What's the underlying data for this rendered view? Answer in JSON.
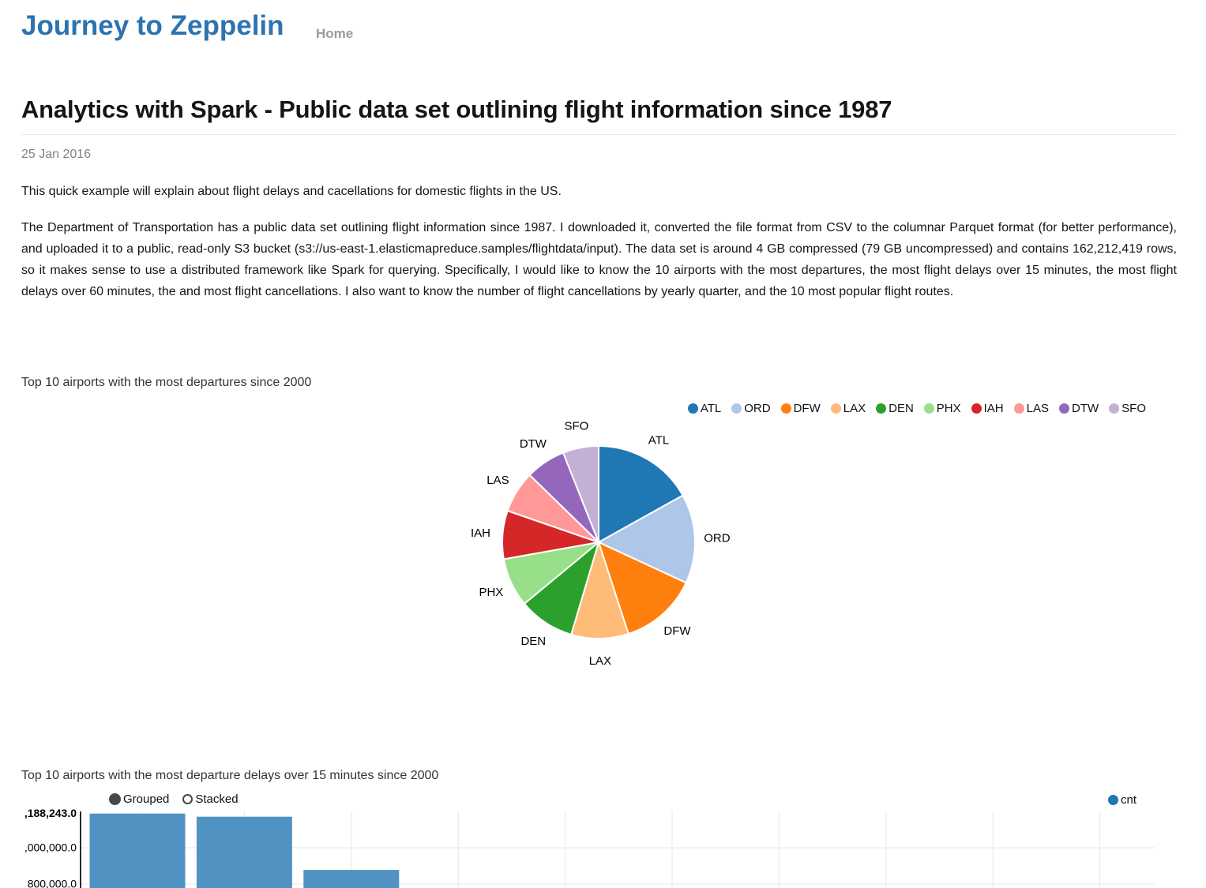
{
  "header": {
    "site_title": "Journey to Zeppelin",
    "nav": [
      {
        "label": "Home"
      }
    ]
  },
  "article": {
    "title": "Analytics with Spark - Public data set outlining flight information since 1987",
    "date": "25 Jan 2016",
    "paragraphs": [
      "This quick example will explain about flight delays and cacellations for domestic flights in the US.",
      "The Department of Transportation has a public data set outlining flight information since 1987. I downloaded it, converted the file format from CSV to the columnar Parquet format (for better performance), and uploaded it to a public, read-only S3 bucket (s3://us-east-1.elasticmapreduce.samples/flightdata/input). The data set is around 4 GB compressed (79 GB uncompressed) and contains 162,212,419 rows, so it makes sense to use a distributed framework like Spark for querying. Specifically, I would like to know the 10 airports with the most departures, the most flight delays over 15 minutes, the most flight delays over 60 minutes, the and most flight cancellations. I also want to know the number of flight cancellations by yearly quarter, and the 10 most popular flight routes."
    ]
  },
  "chart_data": [
    {
      "type": "pie",
      "title": "Top 10 airports with the most departures since 2000",
      "categories": [
        "ATL",
        "ORD",
        "DFW",
        "LAX",
        "DEN",
        "PHX",
        "IAH",
        "LAS",
        "DTW",
        "SFO"
      ],
      "values_pct": [
        16.9,
        15.0,
        13.1,
        9.6,
        9.4,
        8.2,
        8.1,
        7.0,
        6.7,
        6.0
      ],
      "colors": [
        "#1f77b4",
        "#aec7e8",
        "#ff7f0e",
        "#ffbb78",
        "#2ca02c",
        "#98df8a",
        "#d62728",
        "#ff9896",
        "#9467bd",
        "#c5b0d5"
      ],
      "legend_position": "top-right",
      "labels": "outside"
    },
    {
      "type": "bar",
      "title": "Top 10 airports with the most departure delays over 15 minutes since 2000",
      "controls": {
        "options": [
          "Grouped",
          "Stacked"
        ],
        "selected": "Grouped"
      },
      "series": [
        {
          "name": "cnt",
          "color": "#1f77b4",
          "bar_fill": "#5093c3",
          "values_visible": [
            1188243,
            1171000,
            878000
          ]
        }
      ],
      "y_axis": {
        "tick_labels_visible": [
          ",188,243.0",
          ",000,000.0",
          "800,000.0"
        ],
        "tick_values": [
          1188243,
          1000000,
          800000
        ]
      },
      "x_tick_count": 10,
      "grid": true,
      "legend_position": "top-right"
    }
  ]
}
